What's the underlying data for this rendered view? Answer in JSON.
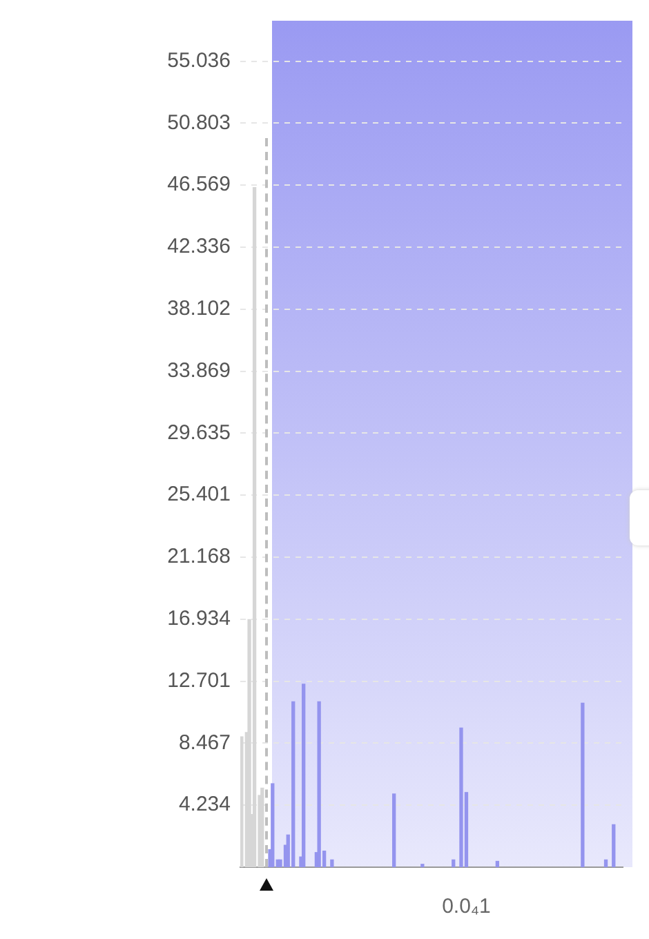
{
  "chart_data": {
    "type": "bar",
    "categories": [
      null,
      null,
      null,
      null,
      null,
      null,
      null,
      null,
      null,
      null,
      null,
      null,
      null,
      null,
      null,
      null,
      null,
      null,
      null,
      null,
      null,
      null,
      null,
      null,
      null,
      null,
      null,
      null,
      null,
      null,
      null,
      null,
      null,
      null,
      null,
      null,
      null,
      null,
      null,
      null,
      null,
      null,
      null,
      null,
      null,
      null,
      null,
      null,
      null,
      null,
      null,
      null,
      null,
      null,
      null,
      null,
      null,
      null,
      null,
      null,
      null,
      null,
      null,
      null,
      null,
      null,
      null,
      null,
      null,
      null,
      null,
      null,
      null,
      null,
      null,
      null,
      null,
      null,
      null,
      null,
      null,
      null,
      null,
      null,
      null,
      null,
      null,
      "0.0₄1",
      null,
      null,
      null,
      null,
      null,
      null,
      null,
      null,
      null,
      null,
      null,
      null,
      null,
      null,
      null,
      null,
      null,
      null,
      null,
      null,
      null,
      null,
      null,
      null,
      null,
      null,
      null,
      null,
      null,
      null,
      null,
      null,
      null,
      null,
      null,
      null,
      null,
      null,
      null,
      null,
      null,
      null,
      null,
      null,
      null,
      null,
      null,
      null,
      null,
      null,
      null,
      null,
      null,
      null,
      null,
      null,
      null,
      null,
      null,
      null
    ],
    "values": [
      8.9,
      null,
      9.2,
      16.9,
      3.6,
      46.4,
      null,
      4.9,
      5.4,
      null,
      null,
      1.2,
      5.7,
      null,
      0.5,
      0.5,
      null,
      1.5,
      2.2,
      null,
      11.3,
      null,
      null,
      0.7,
      12.5,
      null,
      null,
      null,
      null,
      1.0,
      11.3,
      null,
      1.1,
      null,
      null,
      0.5,
      null,
      null,
      null,
      null,
      null,
      null,
      null,
      null,
      null,
      null,
      null,
      null,
      null,
      null,
      null,
      null,
      null,
      null,
      null,
      null,
      null,
      null,
      null,
      5.0,
      null,
      null,
      null,
      null,
      null,
      null,
      null,
      null,
      null,
      null,
      0.2,
      null,
      null,
      null,
      null,
      null,
      null,
      null,
      null,
      null,
      null,
      null,
      0.5,
      null,
      null,
      9.5,
      null,
      5.1,
      null,
      null,
      null,
      null,
      null,
      null,
      null,
      null,
      null,
      null,
      null,
      0.4,
      null,
      null,
      null,
      null,
      null,
      null,
      null,
      null,
      null,
      null,
      null,
      null,
      null,
      null,
      null,
      null,
      null,
      null,
      null,
      null,
      null,
      null,
      null,
      null,
      null,
      null,
      null,
      null,
      null,
      null,
      null,
      null,
      11.2,
      null,
      null,
      null,
      null,
      null,
      null,
      null,
      null,
      0.5,
      null,
      null,
      2.9,
      null,
      null,
      null
    ],
    "colors": [
      "#d6d6d6",
      "#d6d6d6",
      "#d6d6d6",
      "#d6d6d6",
      "#d6d6d6",
      "#d6d6d6",
      "#d6d6d6",
      "#d6d6d6",
      "#d6d6d6",
      "#9494ee",
      "#9494ee",
      "#9494ee",
      "#9494ee",
      "#9494ee",
      "#9494ee",
      "#9494ee",
      "#9494ee",
      "#9494ee",
      "#9494ee",
      "#9494ee",
      "#9494ee",
      "#9494ee",
      "#9494ee",
      "#9494ee",
      "#9494ee",
      "#9494ee",
      "#9494ee",
      "#9494ee",
      "#9494ee",
      "#9494ee",
      "#9494ee",
      "#9494ee",
      "#9494ee",
      "#9494ee",
      "#9494ee",
      "#9494ee",
      "#9494ee",
      "#9494ee",
      "#9494ee",
      "#9494ee",
      "#9494ee",
      "#9494ee",
      "#9494ee",
      "#9494ee",
      "#9494ee",
      "#9494ee",
      "#9494ee",
      "#9494ee",
      "#9494ee",
      "#9494ee",
      "#9494ee",
      "#9494ee",
      "#9494ee",
      "#9494ee",
      "#9494ee",
      "#9494ee",
      "#9494ee",
      "#9494ee",
      "#9494ee",
      "#9494ee",
      "#9494ee",
      "#9494ee",
      "#9494ee",
      "#9494ee",
      "#9494ee",
      "#9494ee",
      "#9494ee",
      "#9494ee",
      "#9494ee",
      "#9494ee",
      "#9494ee",
      "#9494ee",
      "#9494ee",
      "#9494ee",
      "#9494ee",
      "#9494ee",
      "#9494ee",
      "#9494ee",
      "#9494ee",
      "#9494ee",
      "#9494ee",
      "#9494ee",
      "#9494ee",
      "#9494ee",
      "#9494ee",
      "#9494ee",
      "#9494ee",
      "#9494ee",
      "#9494ee",
      "#9494ee",
      "#9494ee",
      "#9494ee",
      "#9494ee",
      "#9494ee",
      "#9494ee",
      "#9494ee",
      "#9494ee",
      "#9494ee",
      "#9494ee",
      "#9494ee",
      "#9494ee",
      "#9494ee",
      "#9494ee",
      "#9494ee",
      "#9494ee",
      "#9494ee",
      "#9494ee",
      "#9494ee",
      "#9494ee",
      "#9494ee",
      "#9494ee",
      "#9494ee",
      "#9494ee",
      "#9494ee",
      "#9494ee",
      "#9494ee",
      "#9494ee",
      "#9494ee",
      "#9494ee",
      "#9494ee",
      "#9494ee",
      "#9494ee",
      "#9494ee",
      "#9494ee",
      "#9494ee",
      "#9494ee",
      "#9494ee",
      "#9494ee",
      "#9494ee",
      "#9494ee",
      "#9494ee",
      "#9494ee",
      "#9494ee",
      "#9494ee",
      "#9494ee",
      "#9494ee",
      "#9494ee",
      "#9494ee",
      "#9494ee",
      "#9494ee",
      "#9494ee",
      "#9494ee",
      "#9494ee",
      "#9494ee",
      "#9494ee",
      "#9494ee",
      "#9494ee",
      "#9494ee"
    ],
    "ylim": [
      0,
      57.7
    ],
    "yticks": [
      4.234,
      8.467,
      12.701,
      16.934,
      21.168,
      25.401,
      29.635,
      33.869,
      38.102,
      42.336,
      46.569,
      50.803,
      55.036
    ],
    "grid": "y",
    "legend": false
  }
}
